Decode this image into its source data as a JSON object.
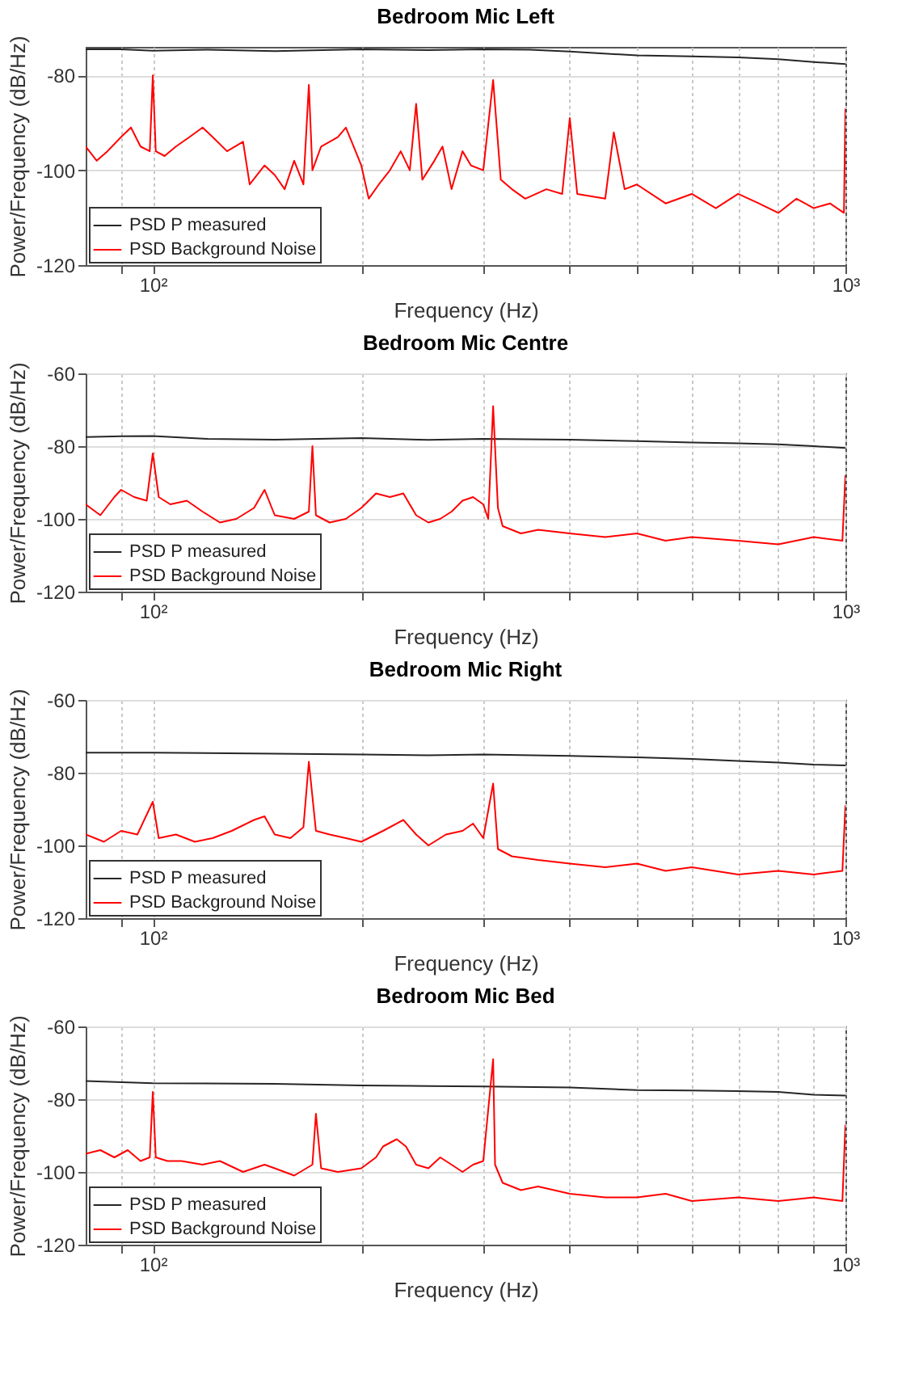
{
  "chart_data": [
    {
      "type": "line",
      "title": "Bedroom Mic Left",
      "xlabel": "Frequency (Hz)",
      "ylabel": "Power/Frequency (dB/Hz)",
      "log": "x",
      "grid": true,
      "legend": "bottom left",
      "xlim": [
        80,
        1000
      ],
      "ylim": [
        -120,
        -74
      ],
      "yticks": [
        -120,
        -100,
        -80
      ],
      "xticks": [
        {
          "value": 90,
          "label": null
        },
        {
          "value": 100,
          "label": "10²"
        },
        {
          "value": 200,
          "label": null
        },
        {
          "value": 300,
          "label": null
        },
        {
          "value": 400,
          "label": null
        },
        {
          "value": 500,
          "label": null
        },
        {
          "value": 600,
          "label": null
        },
        {
          "value": 700,
          "label": null
        },
        {
          "value": 800,
          "label": null
        },
        {
          "value": 900,
          "label": null
        },
        {
          "value": 1000,
          "label": "10³"
        }
      ],
      "series": [
        {
          "name": "PSD P measured",
          "color": "#262626",
          "x": [
            80,
            90,
            100,
            120,
            150,
            200,
            250,
            300,
            350,
            400,
            500,
            600,
            700,
            800,
            900,
            1000
          ],
          "values": [
            -74.5,
            -74.5,
            -74.8,
            -74.6,
            -74.9,
            -74.5,
            -74.7,
            -74.5,
            -74.6,
            -75,
            -75.8,
            -76,
            -76.2,
            -76.6,
            -77.2,
            -77.6
          ]
        },
        {
          "name": "PSD Background Noise",
          "color": "#ff0000",
          "x": [
            80,
            83,
            86,
            90,
            93,
            96,
            99,
            100,
            101,
            104,
            108,
            113,
            118,
            122,
            128,
            135,
            138,
            145,
            150,
            155,
            160,
            165,
            168,
            170,
            175,
            185,
            190,
            195,
            200,
            205,
            212,
            220,
            228,
            235,
            240,
            245,
            255,
            262,
            270,
            280,
            288,
            300,
            310,
            318,
            330,
            345,
            370,
            390,
            400,
            410,
            450,
            463,
            480,
            500,
            550,
            600,
            650,
            700,
            750,
            800,
            850,
            900,
            950,
            995,
            1000
          ],
          "values": [
            -95,
            -98,
            -96,
            -93,
            -91,
            -95,
            -96,
            -80,
            -96,
            -97,
            -95,
            -93,
            -91,
            -93,
            -96,
            -94,
            -103,
            -99,
            -101,
            -104,
            -98,
            -103,
            -82,
            -100,
            -95,
            -93,
            -91,
            -95,
            -99,
            -106,
            -103,
            -100,
            -96,
            -100,
            -86,
            -102,
            -98,
            -95,
            -104,
            -96,
            -99,
            -100,
            -81,
            -102,
            -104,
            -106,
            -104,
            -105,
            -89,
            -105,
            -106,
            -92,
            -104,
            -103,
            -107,
            -105,
            -108,
            -105,
            -107,
            -109,
            -106,
            -108,
            -107,
            -109,
            -87
          ]
        }
      ]
    },
    {
      "type": "line",
      "title": "Bedroom Mic Centre",
      "xlabel": "Frequency (Hz)",
      "ylabel": "Power/Frequency (dB/Hz)",
      "log": "x",
      "grid": true,
      "legend": "bottom left",
      "xlim": [
        80,
        1000
      ],
      "ylim": [
        -120,
        -60
      ],
      "yticks": [
        -120,
        -100,
        -80,
        -60
      ],
      "xticks": [
        {
          "value": 90,
          "label": null
        },
        {
          "value": 100,
          "label": "10²"
        },
        {
          "value": 200,
          "label": null
        },
        {
          "value": 300,
          "label": null
        },
        {
          "value": 400,
          "label": null
        },
        {
          "value": 500,
          "label": null
        },
        {
          "value": 600,
          "label": null
        },
        {
          "value": 700,
          "label": null
        },
        {
          "value": 800,
          "label": null
        },
        {
          "value": 900,
          "label": null
        },
        {
          "value": 1000,
          "label": "10³"
        }
      ],
      "series": [
        {
          "name": "PSD P measured",
          "color": "#262626",
          "x": [
            80,
            90,
            100,
            120,
            150,
            200,
            250,
            300,
            400,
            500,
            600,
            700,
            800,
            900,
            1000
          ],
          "values": [
            -77.5,
            -77.3,
            -77.2,
            -78,
            -78.2,
            -77.8,
            -78.3,
            -78,
            -78.2,
            -78.6,
            -79,
            -79.2,
            -79.5,
            -80,
            -80.5
          ]
        },
        {
          "name": "PSD Background Noise",
          "color": "#ff0000",
          "x": [
            80,
            84,
            88,
            90,
            94,
            98,
            100,
            102,
            106,
            112,
            118,
            125,
            132,
            140,
            145,
            150,
            160,
            168,
            170,
            172,
            180,
            190,
            200,
            210,
            220,
            230,
            240,
            250,
            260,
            270,
            280,
            290,
            300,
            305,
            310,
            315,
            320,
            340,
            360,
            400,
            450,
            500,
            550,
            600,
            700,
            800,
            900,
            990,
            1000
          ],
          "values": [
            -96,
            -99,
            -94,
            -92,
            -94,
            -95,
            -82,
            -94,
            -96,
            -95,
            -98,
            -101,
            -100,
            -97,
            -92,
            -99,
            -100,
            -98,
            -80,
            -99,
            -101,
            -100,
            -97,
            -93,
            -94,
            -93,
            -99,
            -101,
            -100,
            -98,
            -95,
            -94,
            -96,
            -100,
            -69,
            -97,
            -102,
            -104,
            -103,
            -104,
            -105,
            -104,
            -106,
            -105,
            -106,
            -107,
            -105,
            -106,
            -88
          ]
        }
      ]
    },
    {
      "type": "line",
      "title": "Bedroom Mic Right",
      "xlabel": "Frequency (Hz)",
      "ylabel": "Power/Frequency (dB/Hz)",
      "log": "x",
      "grid": true,
      "legend": "bottom left",
      "xlim": [
        80,
        1000
      ],
      "ylim": [
        -120,
        -60
      ],
      "yticks": [
        -120,
        -100,
        -80,
        -60
      ],
      "xticks": [
        {
          "value": 90,
          "label": null
        },
        {
          "value": 100,
          "label": "10²"
        },
        {
          "value": 200,
          "label": null
        },
        {
          "value": 300,
          "label": null
        },
        {
          "value": 400,
          "label": null
        },
        {
          "value": 500,
          "label": null
        },
        {
          "value": 600,
          "label": null
        },
        {
          "value": 700,
          "label": null
        },
        {
          "value": 800,
          "label": null
        },
        {
          "value": 900,
          "label": null
        },
        {
          "value": 1000,
          "label": "10³"
        }
      ],
      "series": [
        {
          "name": "PSD P measured",
          "color": "#262626",
          "x": [
            80,
            100,
            150,
            200,
            250,
            300,
            400,
            500,
            600,
            700,
            800,
            900,
            1000
          ],
          "values": [
            -74.5,
            -74.5,
            -74.8,
            -75,
            -75.2,
            -75,
            -75.4,
            -75.8,
            -76.2,
            -76.8,
            -77.2,
            -77.8,
            -78
          ]
        },
        {
          "name": "PSD Background Noise",
          "color": "#ff0000",
          "x": [
            80,
            85,
            90,
            95,
            100,
            102,
            108,
            115,
            122,
            130,
            140,
            145,
            150,
            158,
            165,
            168,
            172,
            180,
            190,
            200,
            215,
            230,
            240,
            250,
            265,
            280,
            290,
            300,
            310,
            315,
            330,
            360,
            400,
            450,
            500,
            550,
            600,
            700,
            800,
            900,
            990,
            1000
          ],
          "values": [
            -97,
            -99,
            -96,
            -97,
            -88,
            -98,
            -97,
            -99,
            -98,
            -96,
            -93,
            -92,
            -97,
            -98,
            -95,
            -77,
            -96,
            -97,
            -98,
            -99,
            -96,
            -93,
            -97,
            -100,
            -97,
            -96,
            -94,
            -98,
            -83,
            -101,
            -103,
            -104,
            -105,
            -106,
            -105,
            -107,
            -106,
            -108,
            -107,
            -108,
            -107,
            -89
          ]
        }
      ]
    },
    {
      "type": "line",
      "title": "Bedroom Mic Bed",
      "xlabel": "Frequency (Hz)",
      "ylabel": "Power/Frequency (dB/Hz)",
      "log": "x",
      "grid": true,
      "legend": "bottom left",
      "xlim": [
        80,
        1000
      ],
      "ylim": [
        -120,
        -60
      ],
      "yticks": [
        -120,
        -100,
        -80,
        -60
      ],
      "xticks": [
        {
          "value": 90,
          "label": null
        },
        {
          "value": 100,
          "label": "10²"
        },
        {
          "value": 200,
          "label": null
        },
        {
          "value": 300,
          "label": null
        },
        {
          "value": 400,
          "label": null
        },
        {
          "value": 500,
          "label": null
        },
        {
          "value": 600,
          "label": null
        },
        {
          "value": 700,
          "label": null
        },
        {
          "value": 800,
          "label": null
        },
        {
          "value": 900,
          "label": null
        },
        {
          "value": 1000,
          "label": "10³"
        }
      ],
      "series": [
        {
          "name": "PSD P measured",
          "color": "#262626",
          "x": [
            80,
            100,
            150,
            200,
            250,
            300,
            400,
            500,
            600,
            700,
            800,
            900,
            1000
          ],
          "values": [
            -75,
            -75.6,
            -75.8,
            -76.2,
            -76.4,
            -76.5,
            -76.8,
            -77.5,
            -77.6,
            -77.8,
            -78,
            -78.8,
            -79
          ]
        },
        {
          "name": "PSD Background Noise",
          "color": "#ff0000",
          "x": [
            80,
            84,
            88,
            92,
            96,
            99,
            100,
            101,
            105,
            110,
            118,
            125,
            135,
            145,
            150,
            160,
            170,
            172,
            175,
            185,
            200,
            210,
            215,
            225,
            232,
            240,
            250,
            260,
            270,
            280,
            290,
            300,
            310,
            312,
            320,
            340,
            360,
            400,
            450,
            500,
            550,
            600,
            700,
            800,
            900,
            990,
            1000
          ],
          "values": [
            -95,
            -94,
            -96,
            -94,
            -97,
            -96,
            -78,
            -96,
            -97,
            -97,
            -98,
            -97,
            -100,
            -98,
            -99,
            -101,
            -98,
            -84,
            -99,
            -100,
            -99,
            -96,
            -93,
            -91,
            -93,
            -98,
            -99,
            -96,
            -98,
            -100,
            -98,
            -97,
            -69,
            -98,
            -103,
            -105,
            -104,
            -106,
            -107,
            -107,
            -106,
            -108,
            -107,
            -108,
            -107,
            -108,
            -87
          ]
        }
      ]
    }
  ]
}
